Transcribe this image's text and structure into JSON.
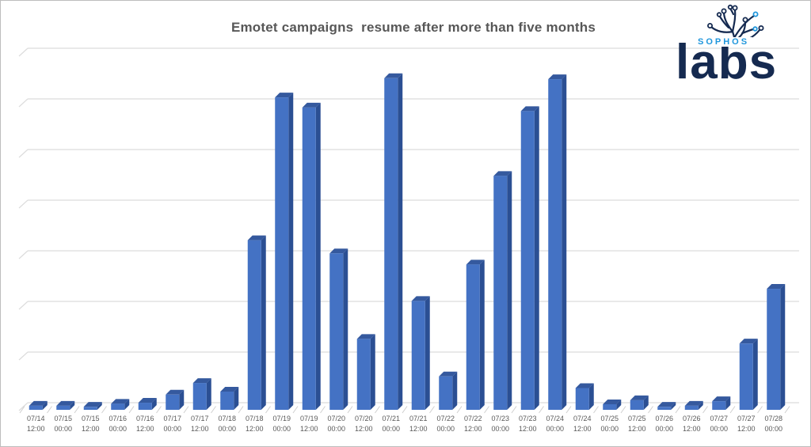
{
  "title": {
    "text": "Emotet campaigns  resume after more than five months"
  },
  "logo": {
    "sophos": "SOPHOS",
    "labs": "labs"
  },
  "colors": {
    "bar_front": "#4472C4",
    "bar_side": "#2B4F93",
    "bar_top": "#35599E",
    "gridline": "#DCDCDC",
    "axis_tick": "#CFCFCF",
    "title_text": "#575757",
    "axis_text": "#595959",
    "page_border": "#BDBDBD",
    "logo_navy": "#152A50",
    "logo_blue": "#1F96DC"
  },
  "chart_data": {
    "type": "bar",
    "style": "3d-column",
    "title": "Emotet campaigns resume after more than five months",
    "xlabel": "",
    "ylabel": "",
    "legend": "none",
    "grid": "horizontal gridlines, 7 equal intervals, no y-axis tick labels",
    "ylim": [
      0,
      7
    ],
    "y_units": "relative height in gridline intervals (y-axis is unlabeled in source image)",
    "categories": [
      "07/14 12:00",
      "07/15 00:00",
      "07/15 12:00",
      "07/16 00:00",
      "07/16 12:00",
      "07/17 00:00",
      "07/17 12:00",
      "07/18 00:00",
      "07/18 12:00",
      "07/19 00:00",
      "07/19 12:00",
      "07/20 00:00",
      "07/20 12:00",
      "07/21 00:00",
      "07/21 12:00",
      "07/22 00:00",
      "07/22 12:00",
      "07/23 00:00",
      "07/23 12:00",
      "07/24 00:00",
      "07/24 12:00",
      "07/25 00:00",
      "07/25 12:00",
      "07/26 00:00",
      "07/26 12:00",
      "07/27 00:00",
      "07/27 12:00",
      "07/28 00:00"
    ],
    "values": [
      0.08,
      0.08,
      0.06,
      0.12,
      0.14,
      0.3,
      0.53,
      0.36,
      3.35,
      6.17,
      5.97,
      3.09,
      1.4,
      6.55,
      2.15,
      0.66,
      2.87,
      4.62,
      5.9,
      6.53,
      0.43,
      0.11,
      0.19,
      0.06,
      0.08,
      0.17,
      1.31,
      2.39
    ]
  }
}
